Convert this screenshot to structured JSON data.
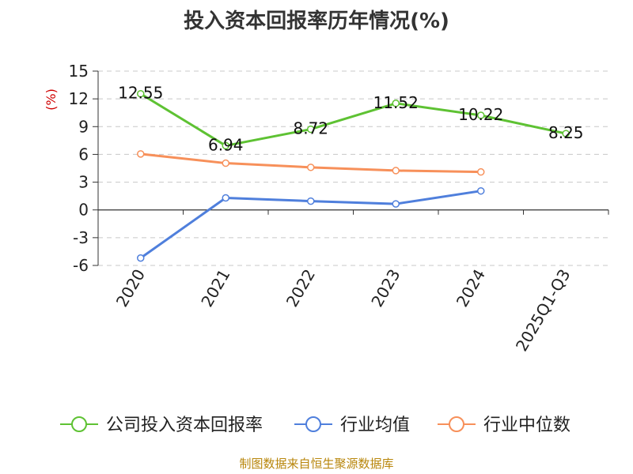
{
  "chart_data": {
    "type": "line",
    "title": "投入资本回报率历年情况(%)",
    "ylabel": "(%)",
    "categories": [
      "2020",
      "2021",
      "2022",
      "2023",
      "2024",
      "2025Q1-Q3"
    ],
    "ylim": [
      -6,
      15
    ],
    "yticks": [
      15,
      12,
      9,
      6,
      3,
      0,
      -3,
      -6
    ],
    "grid": true,
    "legend_position": "bottom",
    "series": [
      {
        "name": "公司投入资本回报率",
        "color": "#5ec233",
        "values": [
          12.55,
          6.94,
          8.72,
          11.52,
          10.22,
          8.25
        ],
        "labels": [
          "12.55",
          "6.94",
          "8.72",
          "11.52",
          "10.22",
          "8.25"
        ]
      },
      {
        "name": "行业均值",
        "color": "#4f7fdc",
        "values": [
          -5.2,
          1.3,
          0.95,
          0.65,
          2.05,
          null
        ]
      },
      {
        "name": "行业中位数",
        "color": "#f7905a",
        "values": [
          6.05,
          5.05,
          4.6,
          4.25,
          4.1,
          null
        ]
      }
    ],
    "source": "制图数据来自恒生聚源数据库"
  }
}
